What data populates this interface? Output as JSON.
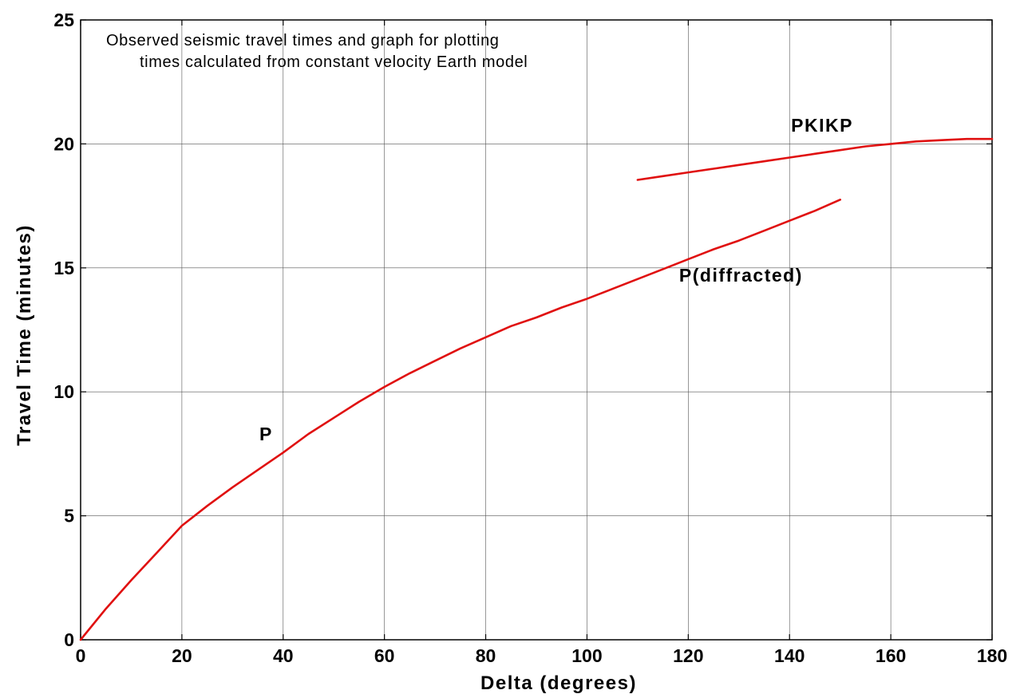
{
  "chart_data": {
    "type": "line",
    "title_lines": [
      "Observed seismic travel times and graph for plotting",
      "times calculated from constant velocity Earth model"
    ],
    "xlabel": "Delta (degrees)",
    "ylabel": "Travel Time (minutes)",
    "xlim": [
      0,
      180
    ],
    "ylim": [
      0,
      25
    ],
    "xticks": [
      0,
      20,
      40,
      60,
      80,
      100,
      120,
      140,
      160,
      180
    ],
    "yticks": [
      0,
      5,
      10,
      15,
      20,
      25
    ],
    "grid": true,
    "series_color": "#e01010",
    "series": [
      {
        "x": [
          0,
          5,
          10,
          15,
          20,
          25,
          30,
          35,
          40,
          45,
          50,
          55,
          60,
          65,
          70,
          75,
          80,
          85,
          90,
          95,
          100,
          105,
          110,
          115,
          120,
          125,
          130,
          135,
          140,
          145,
          150
        ],
        "y": [
          0,
          1.25,
          2.4,
          3.5,
          4.6,
          5.4,
          6.15,
          6.85,
          7.55,
          8.3,
          8.95,
          9.6,
          10.2,
          10.75,
          11.25,
          11.75,
          12.2,
          12.65,
          13.0,
          13.4,
          13.75,
          14.15,
          14.55,
          14.95,
          15.35,
          15.75,
          16.1,
          16.5,
          16.9,
          17.3,
          17.75
        ]
      },
      {
        "x": [
          110,
          115,
          120,
          125,
          130,
          135,
          140,
          145,
          150,
          155,
          160,
          165,
          170,
          175,
          180
        ],
        "y": [
          18.55,
          18.7,
          18.85,
          19.0,
          19.15,
          19.3,
          19.45,
          19.6,
          19.75,
          19.9,
          20.0,
          20.1,
          20.15,
          20.2,
          20.2
        ]
      }
    ],
    "annotations": [
      {
        "text": "P",
        "x": 35.3,
        "y": 8.05
      },
      {
        "text": "P(diffracted)",
        "x": 118.2,
        "y": 14.45
      },
      {
        "text": "PKIKP",
        "x": 140.3,
        "y": 20.5
      }
    ]
  }
}
